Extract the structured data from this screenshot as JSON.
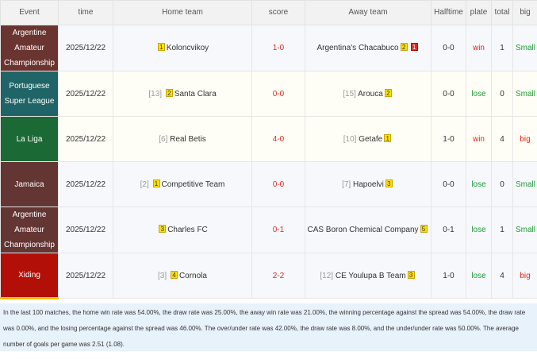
{
  "headers": [
    "Event",
    "time",
    "Home team",
    "score",
    "Away team",
    "Halftime",
    "plate",
    "total",
    "big"
  ],
  "rows": [
    {
      "event": "Argentine Amateur Championship",
      "color": "#6a3530",
      "time": "2025/12/22",
      "home_rank": "",
      "home_cards": [
        {
          "n": "1",
          "c": "y"
        }
      ],
      "home": "Koloncvikoy",
      "score": "1-0",
      "away_rank": "",
      "away": "Argentina's Chacabuco",
      "away_cards": [
        {
          "n": "2",
          "c": "y"
        },
        {
          "n": "1",
          "c": "r"
        }
      ],
      "half": "0-0",
      "plate": "win",
      "total": "1",
      "big": "Small",
      "style": "a"
    },
    {
      "event": "Portuguese Super League",
      "color": "#1f6466",
      "time": "2025/12/22",
      "home_rank": "[13]",
      "home_cards": [
        {
          "n": "2",
          "c": "y"
        }
      ],
      "home": "Santa Clara",
      "score": "0-0",
      "away_rank": "[15]",
      "away": "Arouca",
      "away_cards": [
        {
          "n": "2",
          "c": "y"
        }
      ],
      "half": "0-0",
      "plate": "lose",
      "total": "0",
      "big": "Small",
      "style": "b"
    },
    {
      "event": "La Liga",
      "color": "#1b6a35",
      "time": "2025/12/22",
      "home_rank": "[6]",
      "home_cards": [],
      "home": "Real Betis",
      "score": "4-0",
      "away_rank": "[10]",
      "away": "Getafe",
      "away_cards": [
        {
          "n": "1",
          "c": "y"
        }
      ],
      "half": "1-0",
      "plate": "win",
      "total": "4",
      "big": "big",
      "style": "b"
    },
    {
      "event": "Jamaica",
      "color": "#633533",
      "time": "2025/12/22",
      "home_rank": "[2]",
      "home_cards": [
        {
          "n": "1",
          "c": "y"
        }
      ],
      "home": "Competitive Team",
      "score": "0-0",
      "away_rank": "[7]",
      "away": "Hapoelvi",
      "away_cards": [
        {
          "n": "3",
          "c": "y"
        }
      ],
      "half": "0-0",
      "plate": "lose",
      "total": "0",
      "big": "Small",
      "style": "a"
    },
    {
      "event": "Argentine Amateur Championship",
      "color": "#633533",
      "time": "2025/12/22",
      "home_rank": "",
      "home_cards": [
        {
          "n": "3",
          "c": "y"
        }
      ],
      "home": "Charles FC",
      "score": "0-1",
      "away_rank": "",
      "away": "CAS Boron Chemical Company",
      "away_cards": [
        {
          "n": "5",
          "c": "y"
        }
      ],
      "half": "0-1",
      "plate": "lose",
      "total": "1",
      "big": "Small",
      "style": "a"
    },
    {
      "event": "Xiding",
      "color": "#b10f08",
      "time": "2025/12/22",
      "home_rank": "[3]",
      "home_cards": [
        {
          "n": "4",
          "c": "y"
        }
      ],
      "home": "Cornola",
      "score": "2-2",
      "away_rank": "[12]",
      "away": "CE Youlupa B Team",
      "away_cards": [
        {
          "n": "3",
          "c": "y"
        }
      ],
      "half": "1-0",
      "plate": "lose",
      "total": "4",
      "big": "big",
      "style": "a"
    }
  ],
  "summary": "In the last 100 matches, the home win rate was 54.00%, the draw rate was 25.00%, the away win rate was 21.00%, the winning percentage against the spread was 54.00%, the draw rate was 0.00%, and the losing percentage against the spread was 46.00%. The over/under rate was 42.00%, the draw rate was 8.00%, and the under/under rate was 50.00%. The average number of goals per game was 2.51 (1.08)."
}
